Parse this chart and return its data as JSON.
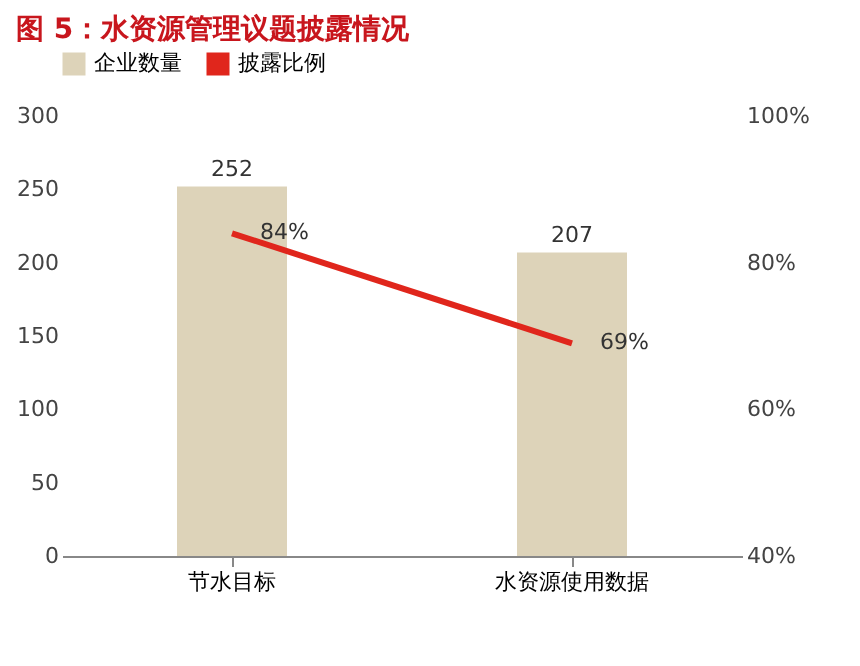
{
  "chart_data": {
    "type": "bar",
    "title": "图 5：水资源管理议题披露情况",
    "categories": [
      "节水目标",
      "水资源使用数据"
    ],
    "series": [
      {
        "name": "企业数量",
        "color": "#ddd3b9",
        "values": [
          252,
          207
        ],
        "value_labels": [
          "252",
          "207"
        ]
      },
      {
        "name": "披露比例",
        "type": "line",
        "axis": "y2",
        "color": "#e0261c",
        "values": [
          84,
          69
        ],
        "value_labels": [
          "84%",
          "69%"
        ]
      }
    ],
    "ylim": [
      0,
      300
    ],
    "yticks": [
      0,
      50,
      100,
      150,
      200,
      250,
      300
    ],
    "y2lim": [
      40,
      100
    ],
    "y2ticks": [
      {
        "value": 40,
        "label": "40%"
      },
      {
        "value": 60,
        "label": "60%"
      },
      {
        "value": 80,
        "label": "80%"
      },
      {
        "value": 100,
        "label": "100%"
      }
    ],
    "legend": "top",
    "grid": false,
    "marker": "none",
    "line_style": "solid"
  }
}
